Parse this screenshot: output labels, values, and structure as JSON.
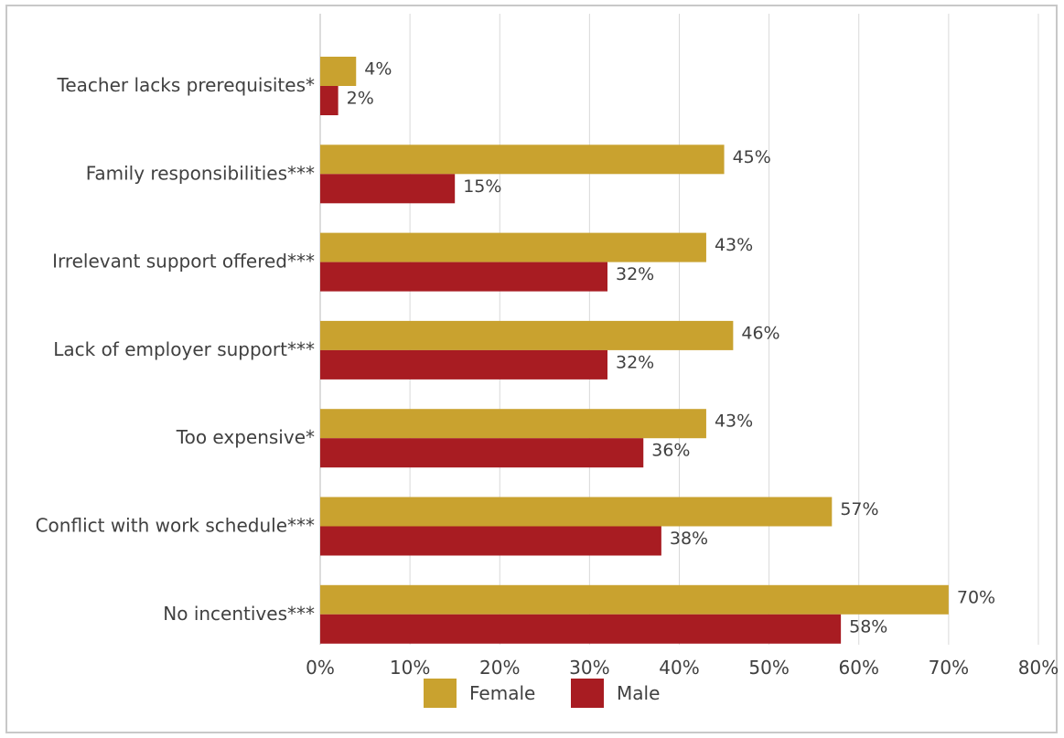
{
  "chart_data": {
    "type": "bar",
    "orientation": "horizontal",
    "title": "",
    "xlabel": "",
    "ylabel": "",
    "categories": [
      "Teacher lacks prerequisites*",
      "Family responsibilities***",
      "Irrelevant support offered***",
      "Lack of employer support***",
      "Too expensive*",
      "Conflict with work schedule***",
      "No incentives***"
    ],
    "series": [
      {
        "name": "Female",
        "color": "#c9a22f",
        "values": [
          4,
          45,
          43,
          46,
          43,
          57,
          70
        ],
        "labels": [
          "4%",
          "45%",
          "43%",
          "46%",
          "43%",
          "57%",
          "70%"
        ]
      },
      {
        "name": "Male",
        "color": "#a81c22",
        "values": [
          2,
          15,
          32,
          32,
          36,
          38,
          58
        ],
        "labels": [
          "2%",
          "15%",
          "32%",
          "32%",
          "36%",
          "38%",
          "58%"
        ]
      }
    ],
    "xlim": [
      0,
      80
    ],
    "ticks": [
      0,
      10,
      20,
      30,
      40,
      50,
      60,
      70,
      80
    ],
    "tick_labels": [
      "0%",
      "10%",
      "20%",
      "30%",
      "40%",
      "50%",
      "60%",
      "70%",
      "80%"
    ],
    "grid": "vertical",
    "legend": "bottom-center"
  }
}
